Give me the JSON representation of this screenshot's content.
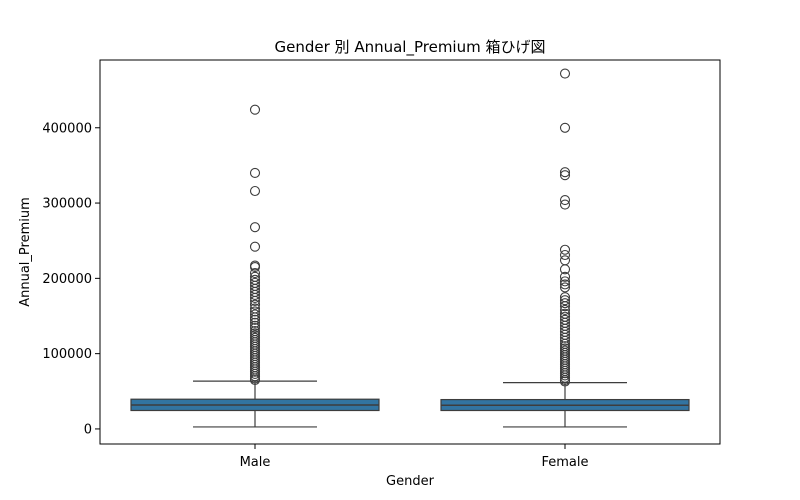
{
  "chart_data": {
    "type": "boxplot",
    "title": "Gender 別 Annual_Premium 箱ひげ図",
    "xlabel": "Gender",
    "ylabel": "Annual_Premium",
    "ylim": [
      -20000,
      490000
    ],
    "yticks": [
      0,
      100000,
      200000,
      300000,
      400000
    ],
    "grid": false,
    "box_color": "#3274a1",
    "edge_color": "#3d3d3d",
    "categories": [
      "Male",
      "Female"
    ],
    "boxes": [
      {
        "category": "Male",
        "whisker_low": 2630,
        "q1": 24500,
        "median": 31800,
        "q3": 39500,
        "whisker_high": 63500,
        "outliers": [
          424000,
          340000,
          316000,
          268000,
          242000,
          217000,
          215000,
          207000,
          202000,
          198000,
          194000,
          190000,
          186000,
          182000,
          178000,
          174000,
          170000,
          165000,
          160000,
          156000,
          152000,
          148000,
          145000,
          141000,
          137000,
          134000,
          130000,
          127000,
          124000,
          121000,
          118000,
          115000,
          112000,
          109000,
          106000,
          103000,
          100000,
          97000,
          94000,
          91000,
          88000,
          85000,
          82000,
          79000,
          76000,
          73000,
          70000,
          67000,
          65000
        ]
      },
      {
        "category": "Female",
        "whisker_low": 2630,
        "q1": 24500,
        "median": 31400,
        "q3": 39000,
        "whisker_high": 61500,
        "outliers": [
          472000,
          400000,
          341000,
          337000,
          304000,
          298000,
          238000,
          231000,
          224000,
          212000,
          202000,
          196000,
          192000,
          188000,
          175000,
          171000,
          167000,
          163000,
          158000,
          153000,
          149000,
          145000,
          141000,
          137000,
          133000,
          129000,
          125000,
          121000,
          117000,
          113000,
          110000,
          107000,
          104000,
          101000,
          98000,
          95000,
          92000,
          89000,
          86000,
          83000,
          80000,
          77000,
          74000,
          71000,
          68000,
          65000,
          63000
        ]
      }
    ]
  }
}
